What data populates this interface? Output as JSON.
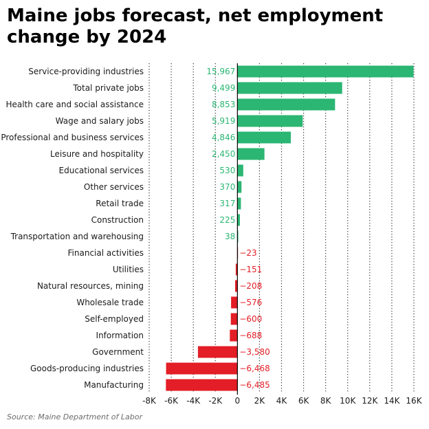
{
  "title": "Maine jobs forecast, net employment change by 2024",
  "source": "Source: Maine Department of Labor",
  "colors": {
    "positive": "#2bb673",
    "negative": "#e31e26",
    "grid": "#333333",
    "text": "#1a1a1a"
  },
  "chart_data": {
    "type": "bar",
    "orientation": "horizontal",
    "title": "Maine jobs forecast, net employment change by 2024",
    "xlabel": "",
    "ylabel": "",
    "xlim": [
      -8000,
      16000
    ],
    "grid": true,
    "ticks": [
      {
        "value": -8000,
        "label": "-8K"
      },
      {
        "value": -6000,
        "label": "-6K"
      },
      {
        "value": -4000,
        "label": "-4K"
      },
      {
        "value": -2000,
        "label": "-2K"
      },
      {
        "value": 0,
        "label": "0"
      },
      {
        "value": 2000,
        "label": "2K"
      },
      {
        "value": 4000,
        "label": "4K"
      },
      {
        "value": 6000,
        "label": "6K"
      },
      {
        "value": 8000,
        "label": "8K"
      },
      {
        "value": 10000,
        "label": "10K"
      },
      {
        "value": 12000,
        "label": "12K"
      },
      {
        "value": 14000,
        "label": "14K"
      },
      {
        "value": 16000,
        "label": "16K"
      }
    ],
    "categories": [
      "Service-providing industries",
      "Total private jobs",
      "Health care and social assistance",
      "Wage and salary jobs",
      "Professional and business services",
      "Leisure and hospitality",
      "Educational services",
      "Other services",
      "Retail trade",
      "Construction",
      "Transportation and warehousing",
      "Financial activities",
      "Utilities",
      "Natural resources, mining",
      "Wholesale trade",
      "Self-employed",
      "Information",
      "Government",
      "Goods-producing industries",
      "Manufacturing"
    ],
    "values": [
      15967,
      9499,
      8853,
      5919,
      4846,
      2450,
      530,
      370,
      317,
      225,
      38,
      -23,
      -151,
      -208,
      -576,
      -600,
      -688,
      -3580,
      -6468,
      -6485
    ],
    "value_labels": [
      "15,967",
      "9,499",
      "8,853",
      "5,919",
      "4,846",
      "2,450",
      "530",
      "370",
      "317",
      "225",
      "38",
      "−23",
      "−151",
      "−208",
      "−576",
      "−600",
      "−688",
      "−3,580",
      "−6,468",
      "−6,485"
    ]
  }
}
